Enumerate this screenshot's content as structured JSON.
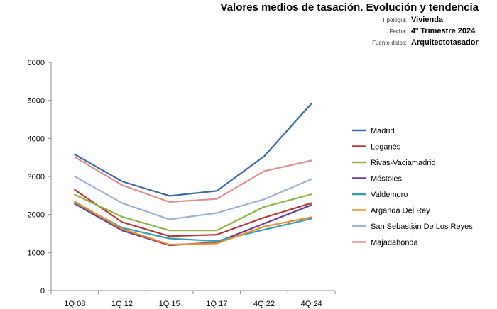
{
  "header": {
    "title": "Valores medios de tasación. Evolución y tendencia",
    "rows": [
      {
        "label": "Tipología:",
        "value": "Vivienda"
      },
      {
        "label": "Fecha:",
        "value": "4º Trimestre 2024"
      },
      {
        "label": "Fuente datos:",
        "value": "Arquitectotasador"
      }
    ]
  },
  "chart_data": {
    "type": "line",
    "title": "Valores medios de tasación. Evolución y tendencia",
    "xlabel": "",
    "ylabel": "",
    "categories": [
      "1Q 08",
      "1Q 12",
      "1Q 15",
      "1Q 17",
      "4Q 22",
      "4Q 24"
    ],
    "ylim": [
      0,
      6000
    ],
    "yticks": [
      0,
      1000,
      2000,
      3000,
      4000,
      5000,
      6000
    ],
    "grid": false,
    "legend_position": "right",
    "series": [
      {
        "name": "Madrid",
        "color": "#3d6aa0",
        "values": [
          3580,
          2870,
          2490,
          2620,
          3530,
          4920
        ]
      },
      {
        "name": "Leganés",
        "color": "#b03a3c",
        "values": [
          2650,
          1800,
          1430,
          1470,
          1920,
          2300
        ]
      },
      {
        "name": "Rivas-Vaciamadrid",
        "color": "#8db54a",
        "values": [
          2520,
          1940,
          1580,
          1580,
          2200,
          2530
        ]
      },
      {
        "name": "Móstoles",
        "color": "#6a3f8f",
        "values": [
          2280,
          1580,
          1190,
          1270,
          1760,
          2250
        ]
      },
      {
        "name": "Valdemoro",
        "color": "#34a0b5",
        "values": [
          2310,
          1650,
          1370,
          1300,
          1600,
          1890
        ]
      },
      {
        "name": "Arganda Del Rey",
        "color": "#ef8c2b",
        "values": [
          2340,
          1620,
          1210,
          1240,
          1680,
          1930
        ]
      },
      {
        "name": "San Sebastián De Los Reyes",
        "color": "#9db2d4",
        "values": [
          3000,
          2300,
          1870,
          2040,
          2400,
          2930
        ]
      },
      {
        "name": "Majadahonda",
        "color": "#d99290",
        "values": [
          3510,
          2770,
          2330,
          2410,
          3140,
          3420
        ]
      }
    ]
  }
}
